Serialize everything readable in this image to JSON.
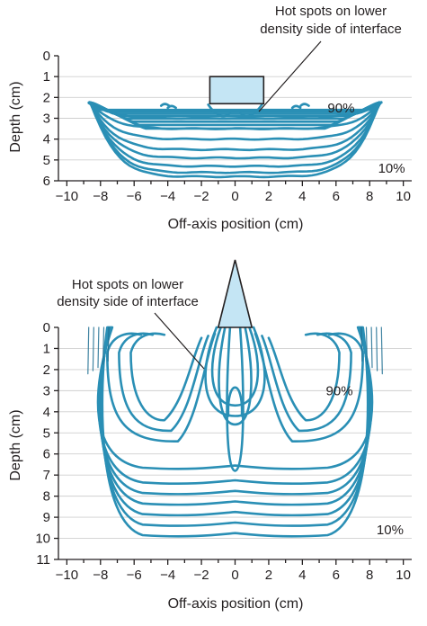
{
  "chart_data": [
    {
      "type": "contour",
      "title": "",
      "xlabel": "Off-axis position (cm)",
      "ylabel": "Depth (cm)",
      "xlim": [
        -10.5,
        10.5
      ],
      "ylim": [
        6,
        0
      ],
      "xticks": [
        "−10",
        "−8",
        "−6",
        "−4",
        "−2",
        "0",
        "2",
        "4",
        "6",
        "8",
        "10"
      ],
      "yticks": [
        "0",
        "1",
        "2",
        "3",
        "4",
        "5",
        "6"
      ],
      "grid": true,
      "inhomogeneity": {
        "shape": "rectangle",
        "x_range": [
          -1.5,
          1.7
        ],
        "depth_range": [
          1.0,
          2.3
        ]
      },
      "annotation": "Hot spots on lower density side of interface",
      "isodose_labels": [
        {
          "text": "90%",
          "x": 5.5,
          "depth": 2.5
        },
        {
          "text": "10%",
          "x": 8.5,
          "depth": 5.4
        }
      ],
      "isodose_depths_at_center_cm": [
        3.0,
        3.5,
        4.0,
        4.5,
        4.9,
        5.3,
        5.6,
        5.8
      ]
    },
    {
      "type": "contour",
      "title": "",
      "xlabel": "Off-axis position (cm)",
      "ylabel": "Depth (cm)",
      "xlim": [
        -10.5,
        10.5
      ],
      "ylim": [
        11,
        0
      ],
      "xticks": [
        "−10",
        "−8",
        "−6",
        "−4",
        "−2",
        "0",
        "2",
        "4",
        "6",
        "8",
        "10"
      ],
      "yticks": [
        "0",
        "1",
        "2",
        "3",
        "4",
        "5",
        "6",
        "7",
        "8",
        "9",
        "10",
        "11"
      ],
      "grid": true,
      "inhomogeneity": {
        "shape": "triangle",
        "x_range": [
          -1.0,
          1.0
        ],
        "depth_range": [
          -3.2,
          0
        ]
      },
      "annotation": "Hot spots on lower density side of interface",
      "isodose_labels": [
        {
          "text": "90%",
          "x": 5.4,
          "depth": 3.0
        },
        {
          "text": "10%",
          "x": 9.8,
          "depth": 9.6
        }
      ],
      "isodose_depths_at_center_cm": [
        6.8,
        7.5,
        8.0,
        8.5,
        9.0,
        9.5,
        10.0
      ]
    }
  ]
}
